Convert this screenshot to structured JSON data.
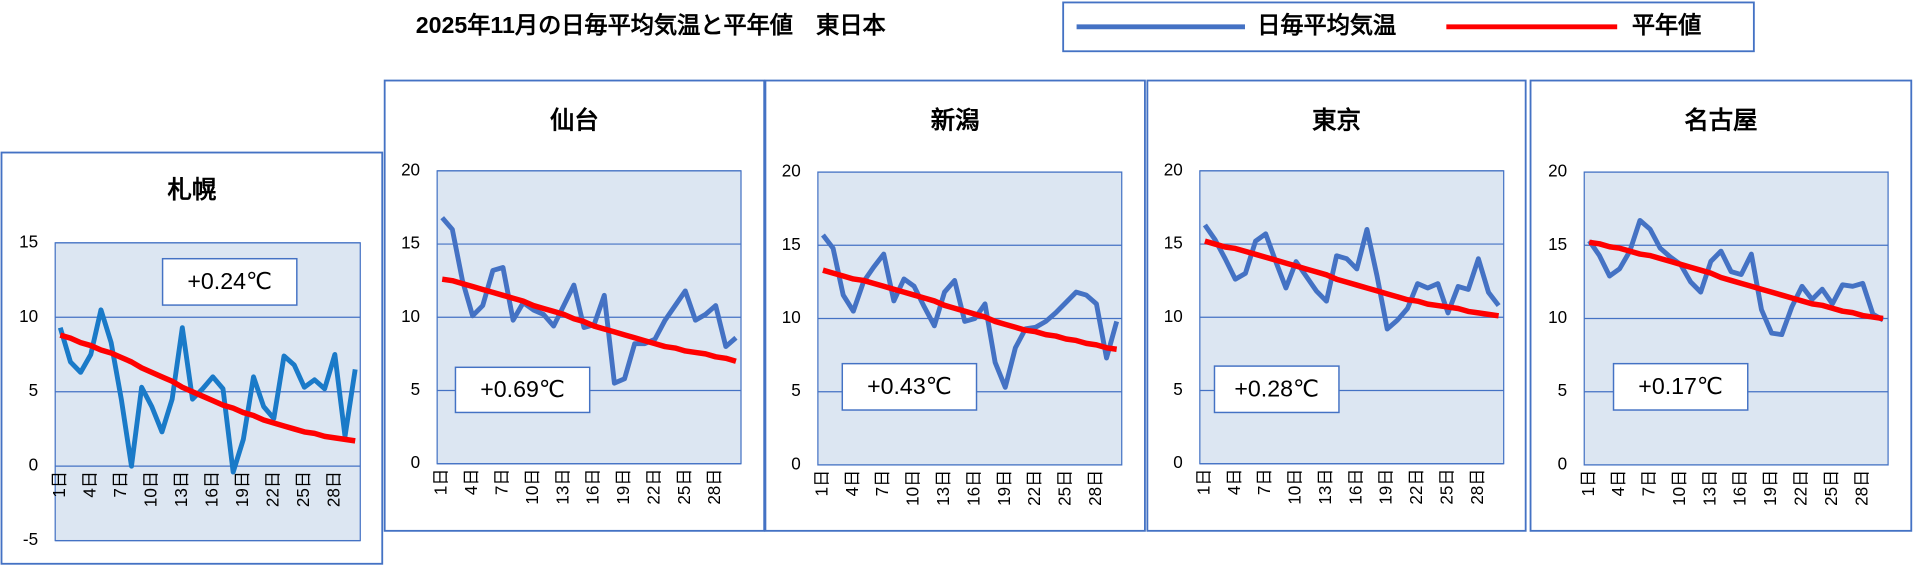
{
  "title": "2025年11月の日毎平均気温と平年値　東日本",
  "chart_data": [
    {
      "type": "line",
      "title": "札幌",
      "annotation": "+0.24℃",
      "ylim": [
        -5,
        15
      ],
      "yticks": [
        -5,
        0,
        5,
        10,
        15
      ],
      "grid": true,
      "categories": [
        "1日",
        null,
        null,
        "4日",
        null,
        null,
        "7日",
        null,
        null,
        "10日",
        null,
        null,
        "13日",
        null,
        null,
        "16日",
        null,
        null,
        "19日",
        null,
        null,
        "22日",
        null,
        null,
        "25日",
        null,
        null,
        "28日",
        null,
        null
      ],
      "series": [
        {
          "name": "日毎平均気温",
          "color": "#1a7ac8",
          "values": [
            9.3,
            7,
            6.3,
            7.5,
            10.5,
            8.3,
            4.5,
            0,
            5.3,
            4,
            2.3,
            4.5,
            9.3,
            4.5,
            5.2,
            6,
            5.2,
            -0.4,
            1.8,
            6,
            4,
            3.2,
            7.4,
            6.8,
            5.3,
            5.8,
            5.2,
            7.5,
            2,
            6.5
          ]
        },
        {
          "name": "平年値",
          "color": "#ff0000",
          "values": [
            8.8,
            8.6,
            8.3,
            8.1,
            7.8,
            7.6,
            7.3,
            7.0,
            6.6,
            6.3,
            6.0,
            5.7,
            5.3,
            5.0,
            4.7,
            4.4,
            4.1,
            3.9,
            3.6,
            3.4,
            3.1,
            2.9,
            2.7,
            2.5,
            2.3,
            2.2,
            2.0,
            1.9,
            1.8,
            1.7
          ]
        }
      ]
    },
    {
      "type": "line",
      "title": "仙台",
      "annotation": "+0.69℃",
      "ylim": [
        0,
        20
      ],
      "yticks": [
        0,
        5,
        10,
        15,
        20
      ],
      "grid": true,
      "categories": [
        "1日",
        null,
        null,
        "4日",
        null,
        null,
        "7日",
        null,
        null,
        "10日",
        null,
        null,
        "13日",
        null,
        null,
        "16日",
        null,
        null,
        "19日",
        null,
        null,
        "22日",
        null,
        null,
        "25日",
        null,
        null,
        "28日",
        null,
        null
      ],
      "series": [
        {
          "name": "日毎平均気温",
          "color": "#4472c4",
          "values": [
            16.8,
            16,
            12.5,
            10.1,
            10.8,
            13.2,
            13.4,
            9.8,
            11,
            10.5,
            10.2,
            9.4,
            10.8,
            12.2,
            9.3,
            9.5,
            11.5,
            5.5,
            5.8,
            8.2,
            8.2,
            8.5,
            9.8,
            10.8,
            11.8,
            9.8,
            10.2,
            10.8,
            8,
            8.6
          ]
        },
        {
          "name": "平年値",
          "color": "#ff0000",
          "values": [
            12.6,
            12.5,
            12.3,
            12.1,
            11.9,
            11.7,
            11.5,
            11.3,
            11.1,
            10.8,
            10.6,
            10.4,
            10.2,
            9.9,
            9.7,
            9.4,
            9.2,
            9.0,
            8.8,
            8.6,
            8.4,
            8.2,
            8.0,
            7.9,
            7.7,
            7.6,
            7.5,
            7.3,
            7.2,
            7.0
          ]
        }
      ]
    },
    {
      "type": "line",
      "title": "新潟",
      "annotation": "+0.43℃",
      "ylim": [
        0,
        20
      ],
      "yticks": [
        0,
        5,
        10,
        15,
        20
      ],
      "grid": true,
      "categories": [
        "1日",
        null,
        null,
        "4日",
        null,
        null,
        "7日",
        null,
        null,
        "10日",
        null,
        null,
        "13日",
        null,
        null,
        "16日",
        null,
        null,
        "19日",
        null,
        null,
        "22日",
        null,
        null,
        "25日",
        null,
        null,
        "28日",
        null,
        null
      ],
      "series": [
        {
          "name": "日毎平均気温",
          "color": "#4472c4",
          "values": [
            15.7,
            14.8,
            11.6,
            10.5,
            12.5,
            13.5,
            14.4,
            11.2,
            12.7,
            12.2,
            10.8,
            9.5,
            11.8,
            12.6,
            9.8,
            10,
            11,
            7,
            5.3,
            8,
            9.3,
            9.4,
            9.8,
            10.4,
            11.1,
            11.8,
            11.6,
            11,
            7.3,
            9.8
          ]
        },
        {
          "name": "平年値",
          "color": "#ff0000",
          "values": [
            13.3,
            13.1,
            12.9,
            12.7,
            12.6,
            12.4,
            12.2,
            12.0,
            11.8,
            11.6,
            11.4,
            11.2,
            10.9,
            10.7,
            10.5,
            10.3,
            10.1,
            9.8,
            9.6,
            9.4,
            9.2,
            9.1,
            8.9,
            8.8,
            8.6,
            8.5,
            8.3,
            8.2,
            8.0,
            7.9
          ]
        }
      ]
    },
    {
      "type": "line",
      "title": "東京",
      "annotation": "+0.28℃",
      "ylim": [
        0,
        20
      ],
      "yticks": [
        0,
        5,
        10,
        15,
        20
      ],
      "grid": true,
      "categories": [
        "1日",
        null,
        null,
        "4日",
        null,
        null,
        "7日",
        null,
        null,
        "10日",
        null,
        null,
        "13日",
        null,
        null,
        "16日",
        null,
        null,
        "19日",
        null,
        null,
        "22日",
        null,
        null,
        "25日",
        null,
        null,
        "28日",
        null,
        null
      ],
      "series": [
        {
          "name": "日毎平均気温",
          "color": "#4472c4",
          "values": [
            16.3,
            15.3,
            14,
            12.6,
            13,
            15.2,
            15.7,
            13.8,
            12,
            13.8,
            12.8,
            11.8,
            11.1,
            14.2,
            14,
            13.3,
            16,
            12.8,
            9.2,
            9.8,
            10.6,
            12.3,
            12,
            12.3,
            10.3,
            12.1,
            11.9,
            14,
            11.7,
            10.8
          ]
        },
        {
          "name": "平年値",
          "color": "#ff0000",
          "values": [
            15.2,
            15.0,
            14.8,
            14.7,
            14.5,
            14.3,
            14.1,
            13.9,
            13.7,
            13.5,
            13.3,
            13.1,
            12.9,
            12.6,
            12.4,
            12.2,
            12.0,
            11.8,
            11.6,
            11.4,
            11.2,
            11.1,
            10.9,
            10.8,
            10.7,
            10.6,
            10.4,
            10.3,
            10.2,
            10.1
          ]
        }
      ]
    },
    {
      "type": "line",
      "title": "名古屋",
      "annotation": "+0.17℃",
      "ylim": [
        0,
        20
      ],
      "yticks": [
        0,
        5,
        10,
        15,
        20
      ],
      "grid": true,
      "categories": [
        "1日",
        null,
        null,
        "4日",
        null,
        null,
        "7日",
        null,
        null,
        "10日",
        null,
        null,
        "13日",
        null,
        null,
        "16日",
        null,
        null,
        "19日",
        null,
        null,
        "22日",
        null,
        null,
        "25日",
        null,
        null,
        "28日",
        null,
        null
      ],
      "series": [
        {
          "name": "日毎平均気温",
          "color": "#4472c4",
          "values": [
            15.3,
            14.3,
            12.9,
            13.4,
            14.6,
            16.7,
            16.1,
            14.8,
            14.2,
            13.7,
            12.5,
            11.8,
            13.9,
            14.6,
            13.2,
            13,
            14.4,
            10.6,
            9,
            8.9,
            10.8,
            12.2,
            11.3,
            12,
            11,
            12.3,
            12.2,
            12.4,
            10.3,
            9.9
          ]
        },
        {
          "name": "平年値",
          "color": "#ff0000",
          "values": [
            15.2,
            15.1,
            14.9,
            14.8,
            14.6,
            14.4,
            14.3,
            14.1,
            13.9,
            13.7,
            13.5,
            13.3,
            13.1,
            12.8,
            12.6,
            12.4,
            12.2,
            12.0,
            11.8,
            11.6,
            11.4,
            11.2,
            11.0,
            10.9,
            10.7,
            10.5,
            10.4,
            10.2,
            10.1,
            10.0
          ]
        }
      ]
    }
  ]
}
